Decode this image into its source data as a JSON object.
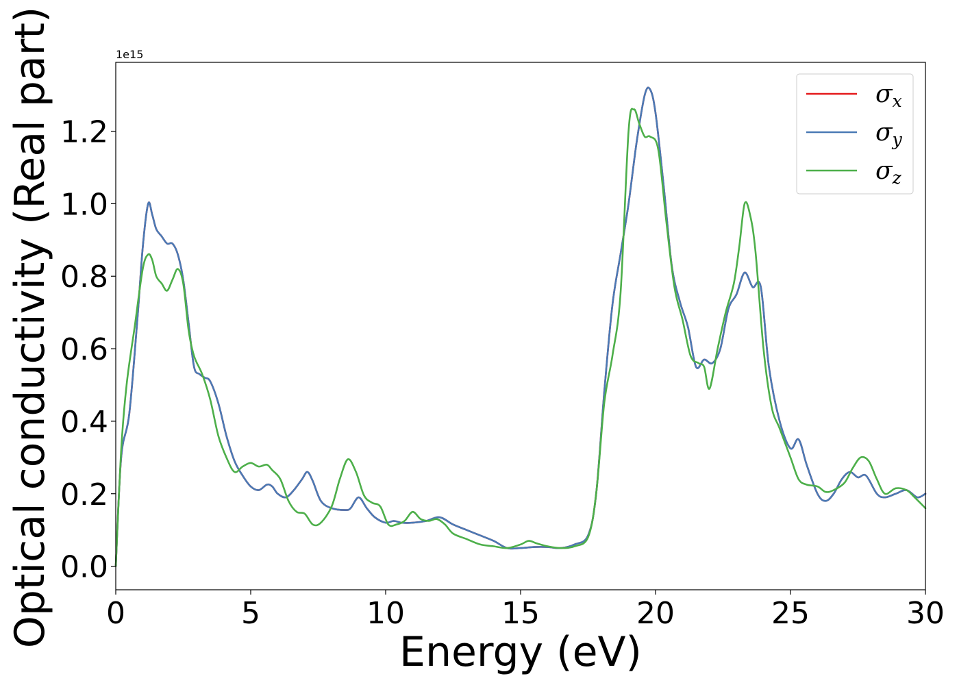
{
  "chart_data": {
    "type": "line",
    "xlabel": "Energy (eV)",
    "ylabel": "Optical conductivity (Real part)",
    "y_offset_label": "1e15",
    "y_scale_factor": 1000000000000000.0,
    "xlim": [
      0,
      30
    ],
    "ylim": [
      -0.065,
      1.39
    ],
    "x_ticks": [
      0,
      5,
      10,
      15,
      20,
      25,
      30
    ],
    "x_tick_labels": [
      "0",
      "5",
      "10",
      "15",
      "20",
      "25",
      "30"
    ],
    "y_ticks": [
      0.0,
      0.2,
      0.4,
      0.6,
      0.8,
      1.0,
      1.2
    ],
    "y_tick_labels": [
      "0.0",
      "0.2",
      "0.4",
      "0.6",
      "0.8",
      "1.0",
      "1.2"
    ],
    "grid": false,
    "legend_position": "top-right",
    "series": [
      {
        "name": "σx",
        "symbol": "σ",
        "subscript": "x",
        "color": "#e41a1c",
        "points": [
          [
            0,
            0
          ],
          [
            0.2,
            0.3
          ],
          [
            0.5,
            0.42
          ],
          [
            0.8,
            0.68
          ],
          [
            1.0,
            0.88
          ],
          [
            1.2,
            1.0
          ],
          [
            1.35,
            0.97
          ],
          [
            1.5,
            0.93
          ],
          [
            1.7,
            0.91
          ],
          [
            1.9,
            0.89
          ],
          [
            2.1,
            0.89
          ],
          [
            2.3,
            0.86
          ],
          [
            2.5,
            0.79
          ],
          [
            2.7,
            0.67
          ],
          [
            2.9,
            0.55
          ],
          [
            3.1,
            0.53
          ],
          [
            3.3,
            0.52
          ],
          [
            3.5,
            0.51
          ],
          [
            3.8,
            0.45
          ],
          [
            4.1,
            0.36
          ],
          [
            4.4,
            0.29
          ],
          [
            4.7,
            0.25
          ],
          [
            5.0,
            0.22
          ],
          [
            5.3,
            0.21
          ],
          [
            5.6,
            0.225
          ],
          [
            5.8,
            0.22
          ],
          [
            6.0,
            0.2
          ],
          [
            6.3,
            0.19
          ],
          [
            6.6,
            0.21
          ],
          [
            6.9,
            0.24
          ],
          [
            7.1,
            0.26
          ],
          [
            7.3,
            0.235
          ],
          [
            7.6,
            0.18
          ],
          [
            8.0,
            0.16
          ],
          [
            8.5,
            0.155
          ],
          [
            8.7,
            0.16
          ],
          [
            9.0,
            0.19
          ],
          [
            9.3,
            0.16
          ],
          [
            9.6,
            0.135
          ],
          [
            10.0,
            0.12
          ],
          [
            10.3,
            0.125
          ],
          [
            10.6,
            0.12
          ],
          [
            11.0,
            0.12
          ],
          [
            11.5,
            0.125
          ],
          [
            12.0,
            0.135
          ],
          [
            12.5,
            0.115
          ],
          [
            13.0,
            0.1
          ],
          [
            13.5,
            0.085
          ],
          [
            14.0,
            0.07
          ],
          [
            14.5,
            0.05
          ],
          [
            15.0,
            0.05
          ],
          [
            15.5,
            0.053
          ],
          [
            16.0,
            0.053
          ],
          [
            16.5,
            0.05
          ],
          [
            17.0,
            0.06
          ],
          [
            17.5,
            0.085
          ],
          [
            17.8,
            0.2
          ],
          [
            18.1,
            0.48
          ],
          [
            18.4,
            0.72
          ],
          [
            18.7,
            0.86
          ],
          [
            19.0,
            1.0
          ],
          [
            19.3,
            1.17
          ],
          [
            19.6,
            1.3
          ],
          [
            19.8,
            1.315
          ],
          [
            20.0,
            1.25
          ],
          [
            20.3,
            1.05
          ],
          [
            20.6,
            0.83
          ],
          [
            20.9,
            0.73
          ],
          [
            21.2,
            0.66
          ],
          [
            21.5,
            0.55
          ],
          [
            21.8,
            0.57
          ],
          [
            22.1,
            0.56
          ],
          [
            22.4,
            0.6
          ],
          [
            22.7,
            0.71
          ],
          [
            23.0,
            0.75
          ],
          [
            23.3,
            0.81
          ],
          [
            23.6,
            0.77
          ],
          [
            23.9,
            0.77
          ],
          [
            24.2,
            0.55
          ],
          [
            24.6,
            0.4
          ],
          [
            25.0,
            0.325
          ],
          [
            25.3,
            0.35
          ],
          [
            25.6,
            0.28
          ],
          [
            26.0,
            0.2
          ],
          [
            26.3,
            0.18
          ],
          [
            26.6,
            0.2
          ],
          [
            26.9,
            0.24
          ],
          [
            27.2,
            0.26
          ],
          [
            27.5,
            0.245
          ],
          [
            27.8,
            0.25
          ],
          [
            28.2,
            0.2
          ],
          [
            28.5,
            0.19
          ],
          [
            28.9,
            0.2
          ],
          [
            29.3,
            0.21
          ],
          [
            29.7,
            0.19
          ],
          [
            30.0,
            0.2
          ]
        ]
      },
      {
        "name": "σy",
        "symbol": "σ",
        "subscript": "y",
        "color": "#4a7ab5",
        "points": [
          [
            0,
            0
          ],
          [
            0.2,
            0.3
          ],
          [
            0.5,
            0.42
          ],
          [
            0.8,
            0.68
          ],
          [
            1.0,
            0.88
          ],
          [
            1.2,
            1.0
          ],
          [
            1.35,
            0.97
          ],
          [
            1.5,
            0.93
          ],
          [
            1.7,
            0.91
          ],
          [
            1.9,
            0.89
          ],
          [
            2.1,
            0.89
          ],
          [
            2.3,
            0.86
          ],
          [
            2.5,
            0.79
          ],
          [
            2.7,
            0.67
          ],
          [
            2.9,
            0.55
          ],
          [
            3.1,
            0.53
          ],
          [
            3.3,
            0.52
          ],
          [
            3.5,
            0.51
          ],
          [
            3.8,
            0.45
          ],
          [
            4.1,
            0.36
          ],
          [
            4.4,
            0.29
          ],
          [
            4.7,
            0.25
          ],
          [
            5.0,
            0.22
          ],
          [
            5.3,
            0.21
          ],
          [
            5.6,
            0.225
          ],
          [
            5.8,
            0.22
          ],
          [
            6.0,
            0.2
          ],
          [
            6.3,
            0.19
          ],
          [
            6.6,
            0.21
          ],
          [
            6.9,
            0.24
          ],
          [
            7.1,
            0.26
          ],
          [
            7.3,
            0.235
          ],
          [
            7.6,
            0.18
          ],
          [
            8.0,
            0.16
          ],
          [
            8.5,
            0.155
          ],
          [
            8.7,
            0.16
          ],
          [
            9.0,
            0.19
          ],
          [
            9.3,
            0.16
          ],
          [
            9.6,
            0.135
          ],
          [
            10.0,
            0.12
          ],
          [
            10.3,
            0.125
          ],
          [
            10.6,
            0.12
          ],
          [
            11.0,
            0.12
          ],
          [
            11.5,
            0.125
          ],
          [
            12.0,
            0.135
          ],
          [
            12.5,
            0.115
          ],
          [
            13.0,
            0.1
          ],
          [
            13.5,
            0.085
          ],
          [
            14.0,
            0.07
          ],
          [
            14.5,
            0.05
          ],
          [
            15.0,
            0.05
          ],
          [
            15.5,
            0.053
          ],
          [
            16.0,
            0.053
          ],
          [
            16.5,
            0.05
          ],
          [
            17.0,
            0.06
          ],
          [
            17.5,
            0.085
          ],
          [
            17.8,
            0.2
          ],
          [
            18.1,
            0.48
          ],
          [
            18.4,
            0.72
          ],
          [
            18.7,
            0.86
          ],
          [
            19.0,
            1.0
          ],
          [
            19.3,
            1.17
          ],
          [
            19.6,
            1.3
          ],
          [
            19.8,
            1.315
          ],
          [
            20.0,
            1.25
          ],
          [
            20.3,
            1.05
          ],
          [
            20.6,
            0.83
          ],
          [
            20.9,
            0.73
          ],
          [
            21.2,
            0.66
          ],
          [
            21.5,
            0.55
          ],
          [
            21.8,
            0.57
          ],
          [
            22.1,
            0.56
          ],
          [
            22.4,
            0.6
          ],
          [
            22.7,
            0.71
          ],
          [
            23.0,
            0.75
          ],
          [
            23.3,
            0.81
          ],
          [
            23.6,
            0.77
          ],
          [
            23.9,
            0.77
          ],
          [
            24.2,
            0.55
          ],
          [
            24.6,
            0.4
          ],
          [
            25.0,
            0.325
          ],
          [
            25.3,
            0.35
          ],
          [
            25.6,
            0.28
          ],
          [
            26.0,
            0.2
          ],
          [
            26.3,
            0.18
          ],
          [
            26.6,
            0.2
          ],
          [
            26.9,
            0.24
          ],
          [
            27.2,
            0.26
          ],
          [
            27.5,
            0.245
          ],
          [
            27.8,
            0.25
          ],
          [
            28.2,
            0.2
          ],
          [
            28.5,
            0.19
          ],
          [
            28.9,
            0.2
          ],
          [
            29.3,
            0.21
          ],
          [
            29.7,
            0.19
          ],
          [
            30.0,
            0.2
          ]
        ]
      },
      {
        "name": "σz",
        "symbol": "σ",
        "subscript": "z",
        "color": "#4daf4a",
        "points": [
          [
            0,
            0
          ],
          [
            0.2,
            0.32
          ],
          [
            0.4,
            0.5
          ],
          [
            0.7,
            0.66
          ],
          [
            1.0,
            0.82
          ],
          [
            1.2,
            0.86
          ],
          [
            1.35,
            0.845
          ],
          [
            1.5,
            0.8
          ],
          [
            1.7,
            0.78
          ],
          [
            1.9,
            0.76
          ],
          [
            2.1,
            0.79
          ],
          [
            2.3,
            0.82
          ],
          [
            2.5,
            0.78
          ],
          [
            2.7,
            0.65
          ],
          [
            2.9,
            0.58
          ],
          [
            3.2,
            0.53
          ],
          [
            3.5,
            0.46
          ],
          [
            3.8,
            0.36
          ],
          [
            4.1,
            0.3
          ],
          [
            4.4,
            0.26
          ],
          [
            4.7,
            0.275
          ],
          [
            5.0,
            0.285
          ],
          [
            5.3,
            0.275
          ],
          [
            5.6,
            0.28
          ],
          [
            5.8,
            0.265
          ],
          [
            6.1,
            0.24
          ],
          [
            6.4,
            0.18
          ],
          [
            6.7,
            0.15
          ],
          [
            7.0,
            0.145
          ],
          [
            7.3,
            0.115
          ],
          [
            7.6,
            0.12
          ],
          [
            8.0,
            0.165
          ],
          [
            8.3,
            0.24
          ],
          [
            8.6,
            0.295
          ],
          [
            8.9,
            0.26
          ],
          [
            9.2,
            0.195
          ],
          [
            9.5,
            0.175
          ],
          [
            9.8,
            0.165
          ],
          [
            10.1,
            0.115
          ],
          [
            10.4,
            0.115
          ],
          [
            10.7,
            0.125
          ],
          [
            11.0,
            0.15
          ],
          [
            11.3,
            0.13
          ],
          [
            11.6,
            0.125
          ],
          [
            11.9,
            0.13
          ],
          [
            12.2,
            0.115
          ],
          [
            12.5,
            0.09
          ],
          [
            13.0,
            0.075
          ],
          [
            13.5,
            0.06
          ],
          [
            14.0,
            0.055
          ],
          [
            14.5,
            0.05
          ],
          [
            15.0,
            0.06
          ],
          [
            15.3,
            0.07
          ],
          [
            15.6,
            0.063
          ],
          [
            16.0,
            0.055
          ],
          [
            16.5,
            0.05
          ],
          [
            17.0,
            0.055
          ],
          [
            17.5,
            0.08
          ],
          [
            17.8,
            0.2
          ],
          [
            18.1,
            0.45
          ],
          [
            18.4,
            0.58
          ],
          [
            18.7,
            0.75
          ],
          [
            19.0,
            1.2
          ],
          [
            19.2,
            1.26
          ],
          [
            19.4,
            1.22
          ],
          [
            19.6,
            1.185
          ],
          [
            19.8,
            1.185
          ],
          [
            20.1,
            1.15
          ],
          [
            20.4,
            0.95
          ],
          [
            20.7,
            0.77
          ],
          [
            21.0,
            0.68
          ],
          [
            21.3,
            0.58
          ],
          [
            21.6,
            0.56
          ],
          [
            21.8,
            0.55
          ],
          [
            22.0,
            0.49
          ],
          [
            22.3,
            0.6
          ],
          [
            22.6,
            0.7
          ],
          [
            22.9,
            0.78
          ],
          [
            23.1,
            0.88
          ],
          [
            23.3,
            1.0
          ],
          [
            23.5,
            0.97
          ],
          [
            23.7,
            0.87
          ],
          [
            24.0,
            0.6
          ],
          [
            24.3,
            0.44
          ],
          [
            24.6,
            0.38
          ],
          [
            25.0,
            0.3
          ],
          [
            25.3,
            0.24
          ],
          [
            25.6,
            0.225
          ],
          [
            26.0,
            0.22
          ],
          [
            26.3,
            0.205
          ],
          [
            26.6,
            0.21
          ],
          [
            27.0,
            0.23
          ],
          [
            27.3,
            0.27
          ],
          [
            27.6,
            0.3
          ],
          [
            27.9,
            0.29
          ],
          [
            28.2,
            0.24
          ],
          [
            28.5,
            0.2
          ],
          [
            28.9,
            0.215
          ],
          [
            29.3,
            0.21
          ],
          [
            29.6,
            0.19
          ],
          [
            30.0,
            0.16
          ]
        ]
      }
    ]
  }
}
